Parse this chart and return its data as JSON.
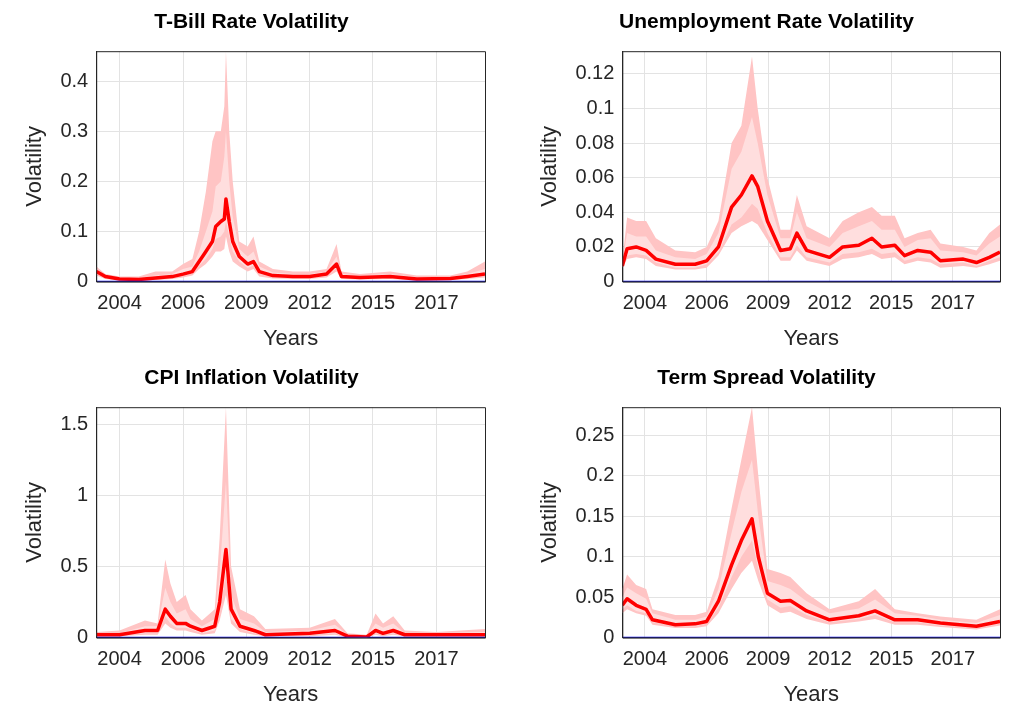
{
  "chart_data": [
    {
      "type": "line",
      "title": "T-Bill Rate Volatility",
      "xlabel": "Years",
      "ylabel": "Volatility",
      "grid": true,
      "xlim": [
        2002.71,
        2019.37
      ],
      "xticks": [
        {
          "value": 2003.71,
          "label": "2004"
        },
        {
          "value": 2006.43,
          "label": "2006"
        },
        {
          "value": 2009.14,
          "label": "2009"
        },
        {
          "value": 2011.86,
          "label": "2012"
        },
        {
          "value": 2014.57,
          "label": "2015"
        },
        {
          "value": 2017.29,
          "label": "2017"
        }
      ],
      "ylim": [
        0,
        0.46
      ],
      "yticks": [
        0,
        0.1,
        0.2,
        0.3,
        0.4
      ],
      "x": [
        2002.72,
        2003.1,
        2003.71,
        2004.53,
        2005.25,
        2005.97,
        2006.43,
        2006.83,
        2007.12,
        2007.41,
        2007.69,
        2007.83,
        2008.05,
        2008.2,
        2008.27,
        2008.41,
        2008.56,
        2008.84,
        2009.2,
        2009.45,
        2009.7,
        2010.28,
        2011.14,
        2011.86,
        2012.58,
        2013.01,
        2013.22,
        2014.01,
        2015.3,
        2016.45,
        2017.89,
        2018.61,
        2019.37
      ],
      "series": [
        {
          "color": "#ff0000",
          "values": [
            0.02,
            0.01,
            0.005,
            0.004,
            0.007,
            0.01,
            0.015,
            0.02,
            0.04,
            0.06,
            0.08,
            0.11,
            0.12,
            0.125,
            0.165,
            0.12,
            0.08,
            0.05,
            0.035,
            0.04,
            0.02,
            0.012,
            0.01,
            0.01,
            0.015,
            0.035,
            0.01,
            0.008,
            0.01,
            0.005,
            0.006,
            0.01,
            0.015
          ],
          "lower": [
            0.015,
            0.007,
            0.003,
            0.002,
            0.005,
            0.007,
            0.011,
            0.016,
            0.032,
            0.045,
            0.065,
            0.085,
            0.09,
            0.1,
            0.12,
            0.09,
            0.06,
            0.04,
            0.027,
            0.032,
            0.015,
            0.009,
            0.007,
            0.007,
            0.011,
            0.027,
            0.007,
            0.006,
            0.007,
            0.003,
            0.004,
            0.007,
            0.011
          ],
          "upper": [
            0.025,
            0.012,
            0.008,
            0.007,
            0.012,
            0.015,
            0.025,
            0.03,
            0.06,
            0.1,
            0.14,
            0.19,
            0.2,
            0.25,
            0.3,
            0.2,
            0.13,
            0.065,
            0.05,
            0.06,
            0.03,
            0.018,
            0.015,
            0.015,
            0.02,
            0.05,
            0.015,
            0.012,
            0.015,
            0.009,
            0.009,
            0.015,
            0.025
          ]
        },
        {
          "color": "#ffc4c4",
          "values": [
            null,
            null,
            null,
            null,
            null,
            null,
            null,
            null,
            null,
            null,
            null,
            null,
            null,
            null,
            null,
            null,
            null,
            null,
            null,
            null,
            null,
            null,
            null,
            null,
            null,
            null,
            null,
            null,
            null,
            null,
            null,
            null,
            null
          ],
          "lower": [
            0.012,
            0.005,
            0.002,
            0.001,
            0.003,
            0.005,
            0.008,
            0.012,
            0.025,
            0.035,
            0.05,
            0.06,
            0.06,
            0.065,
            0.09,
            0.06,
            0.04,
            0.03,
            0.02,
            0.025,
            0.01,
            0.006,
            0.005,
            0.005,
            0.008,
            0.02,
            0.005,
            0.004,
            0.005,
            0.002,
            0.003,
            0.005,
            0.008
          ],
          "upper": [
            0.03,
            0.015,
            0.01,
            0.01,
            0.02,
            0.02,
            0.035,
            0.045,
            0.1,
            0.18,
            0.28,
            0.3,
            0.3,
            0.35,
            0.46,
            0.3,
            0.2,
            0.08,
            0.07,
            0.09,
            0.04,
            0.025,
            0.02,
            0.02,
            0.025,
            0.075,
            0.02,
            0.015,
            0.02,
            0.012,
            0.012,
            0.02,
            0.04
          ]
        }
      ],
      "ref_lines": [
        {
          "axis": "y",
          "value": 0,
          "color": "#0000ff"
        }
      ]
    },
    {
      "type": "line",
      "title": "Unemployment Rate Volatility",
      "xlabel": "Years",
      "ylabel": "Volatility",
      "grid": true,
      "xlim": [
        2002.71,
        2019.37
      ],
      "xticks": [
        {
          "value": 2003.71,
          "label": "2004"
        },
        {
          "value": 2006.43,
          "label": "2006"
        },
        {
          "value": 2009.14,
          "label": "2009"
        },
        {
          "value": 2011.86,
          "label": "2012"
        },
        {
          "value": 2014.57,
          "label": "2015"
        },
        {
          "value": 2017.29,
          "label": "2017"
        }
      ],
      "ylim": [
        0,
        0.133
      ],
      "yticks": [
        0,
        0.02,
        0.04,
        0.06,
        0.08,
        0.1,
        0.12
      ],
      "x": [
        2002.71,
        2002.92,
        2003.32,
        2003.76,
        2004.19,
        2005.05,
        2005.92,
        2006.43,
        2006.95,
        2007.53,
        2007.96,
        2008.43,
        2008.68,
        2009.11,
        2009.69,
        2010.12,
        2010.41,
        2010.84,
        2011.85,
        2012.43,
        2013.14,
        2013.72,
        2014.15,
        2014.73,
        2015.16,
        2015.74,
        2016.31,
        2016.74,
        2017.75,
        2018.33,
        2018.9,
        2019.37
      ],
      "series": [
        {
          "color": "#ff0000",
          "values": [
            0.009,
            0.019,
            0.02,
            0.018,
            0.013,
            0.01,
            0.01,
            0.012,
            0.02,
            0.043,
            0.05,
            0.061,
            0.055,
            0.035,
            0.018,
            0.019,
            0.028,
            0.018,
            0.014,
            0.02,
            0.021,
            0.025,
            0.02,
            0.021,
            0.015,
            0.018,
            0.017,
            0.012,
            0.013,
            0.011,
            0.014,
            0.017
          ],
          "lower": [
            0.0085,
            0.015,
            0.016,
            0.015,
            0.011,
            0.008,
            0.008,
            0.01,
            0.017,
            0.033,
            0.037,
            0.045,
            0.042,
            0.028,
            0.014,
            0.014,
            0.021,
            0.014,
            0.011,
            0.016,
            0.017,
            0.019,
            0.016,
            0.017,
            0.012,
            0.014,
            0.013,
            0.01,
            0.011,
            0.009,
            0.012,
            0.014
          ],
          "upper": [
            0.011,
            0.028,
            0.026,
            0.026,
            0.018,
            0.014,
            0.013,
            0.016,
            0.028,
            0.065,
            0.075,
            0.095,
            0.08,
            0.05,
            0.025,
            0.025,
            0.04,
            0.025,
            0.02,
            0.028,
            0.032,
            0.035,
            0.03,
            0.03,
            0.02,
            0.024,
            0.025,
            0.018,
            0.017,
            0.015,
            0.022,
            0.026
          ]
        },
        {
          "color": "#ffc4c4",
          "values": [
            null,
            null,
            null,
            null,
            null,
            null,
            null,
            null,
            null,
            null,
            null,
            null,
            null,
            null,
            null,
            null,
            null,
            null,
            null,
            null,
            null,
            null,
            null,
            null,
            null,
            null,
            null,
            null,
            null,
            null,
            null,
            null
          ],
          "lower": [
            0.008,
            0.013,
            0.014,
            0.013,
            0.009,
            0.007,
            0.007,
            0.008,
            0.015,
            0.028,
            0.032,
            0.035,
            0.033,
            0.024,
            0.012,
            0.012,
            0.018,
            0.012,
            0.009,
            0.013,
            0.014,
            0.016,
            0.013,
            0.014,
            0.01,
            0.012,
            0.011,
            0.008,
            0.009,
            0.008,
            0.01,
            0.012
          ],
          "upper": [
            0.012,
            0.037,
            0.035,
            0.035,
            0.025,
            0.018,
            0.017,
            0.02,
            0.035,
            0.08,
            0.09,
            0.13,
            0.1,
            0.06,
            0.03,
            0.03,
            0.05,
            0.032,
            0.025,
            0.035,
            0.04,
            0.043,
            0.038,
            0.038,
            0.025,
            0.028,
            0.03,
            0.022,
            0.02,
            0.018,
            0.028,
            0.033
          ]
        }
      ],
      "ref_lines": [
        {
          "axis": "y",
          "value": 0,
          "color": "#0000ff"
        }
      ]
    },
    {
      "type": "line",
      "title": "CPI Inflation Volatility",
      "xlabel": "Years",
      "ylabel": "Volatility",
      "grid": true,
      "xlim": [
        2002.71,
        2019.37
      ],
      "xticks": [
        {
          "value": 2003.71,
          "label": "2004"
        },
        {
          "value": 2006.43,
          "label": "2006"
        },
        {
          "value": 2009.14,
          "label": "2009"
        },
        {
          "value": 2011.86,
          "label": "2012"
        },
        {
          "value": 2014.57,
          "label": "2015"
        },
        {
          "value": 2017.29,
          "label": "2017"
        }
      ],
      "ylim": [
        0,
        1.62
      ],
      "yticks": [
        0,
        0.5,
        1,
        1.5
      ],
      "x": [
        2002.72,
        2003.71,
        2004.8,
        2005.34,
        2005.67,
        2005.89,
        2006.16,
        2006.54,
        2006.75,
        2007.24,
        2007.79,
        2008.0,
        2008.27,
        2008.49,
        2008.87,
        2009.47,
        2009.96,
        2011.86,
        2012.94,
        2013.48,
        2014.3,
        2014.68,
        2015.0,
        2015.44,
        2015.93,
        2017.28,
        2019.37
      ],
      "series": [
        {
          "color": "#ff0000",
          "values": [
            0.02,
            0.02,
            0.05,
            0.05,
            0.2,
            0.15,
            0.1,
            0.1,
            0.08,
            0.05,
            0.08,
            0.25,
            0.62,
            0.2,
            0.08,
            0.05,
            0.02,
            0.03,
            0.05,
            0.01,
            0.005,
            0.05,
            0.03,
            0.05,
            0.02,
            0.02,
            0.02
          ],
          "lower": [
            0.015,
            0.015,
            0.03,
            0.03,
            0.15,
            0.1,
            0.07,
            0.07,
            0.06,
            0.03,
            0.05,
            0.17,
            0.45,
            0.13,
            0.06,
            0.03,
            0.015,
            0.02,
            0.03,
            0.005,
            0,
            0.03,
            0.02,
            0.03,
            0.015,
            0.015,
            0.015
          ],
          "upper": [
            0.03,
            0.03,
            0.08,
            0.08,
            0.35,
            0.25,
            0.17,
            0.2,
            0.13,
            0.08,
            0.13,
            0.45,
            1.1,
            0.3,
            0.13,
            0.1,
            0.04,
            0.05,
            0.09,
            0.02,
            0.01,
            0.1,
            0.07,
            0.1,
            0.03,
            0.03,
            0.04
          ]
        },
        {
          "color": "#ffc4c4",
          "values": [
            null,
            null,
            null,
            null,
            null,
            null,
            null,
            null,
            null,
            null,
            null,
            null,
            null,
            null,
            null,
            null,
            null,
            null,
            null,
            null,
            null,
            null,
            null,
            null,
            null,
            null,
            null
          ],
          "lower": [
            0.01,
            0.01,
            0.02,
            0.02,
            0.1,
            0.07,
            0.05,
            0.05,
            0.04,
            0.02,
            0.03,
            0.12,
            0.3,
            0.1,
            0.04,
            0.02,
            0.01,
            0.01,
            0.02,
            0,
            0,
            0.02,
            0.01,
            0.02,
            0.01,
            0.01,
            0.01
          ],
          "upper": [
            0.04,
            0.05,
            0.12,
            0.1,
            0.55,
            0.38,
            0.25,
            0.3,
            0.2,
            0.12,
            0.2,
            0.7,
            1.62,
            0.5,
            0.2,
            0.15,
            0.06,
            0.07,
            0.13,
            0.03,
            0.02,
            0.17,
            0.1,
            0.15,
            0.05,
            0.04,
            0.06
          ]
        }
      ],
      "ref_lines": [
        {
          "axis": "y",
          "value": 0,
          "color": "#0000ff"
        }
      ]
    },
    {
      "type": "line",
      "title": "Term Spread Volatility",
      "xlabel": "Years",
      "ylabel": "Volatility",
      "grid": true,
      "xlim": [
        2002.71,
        2019.37
      ],
      "xticks": [
        {
          "value": 2003.71,
          "label": "2004"
        },
        {
          "value": 2006.43,
          "label": "2006"
        },
        {
          "value": 2009.14,
          "label": "2009"
        },
        {
          "value": 2011.86,
          "label": "2012"
        },
        {
          "value": 2014.57,
          "label": "2015"
        },
        {
          "value": 2017.29,
          "label": "2017"
        }
      ],
      "ylim": [
        0,
        0.285
      ],
      "yticks": [
        0,
        0.05,
        0.1,
        0.15,
        0.2,
        0.25
      ],
      "x": [
        2002.71,
        2002.92,
        2003.32,
        2003.76,
        2004.04,
        2005.05,
        2005.92,
        2006.43,
        2006.95,
        2007.53,
        2007.96,
        2008.43,
        2008.71,
        2009.11,
        2009.69,
        2010.12,
        2010.84,
        2011.85,
        2013.14,
        2013.86,
        2014.73,
        2015.74,
        2016.74,
        2018.33,
        2019.37
      ],
      "series": [
        {
          "color": "#ff0000",
          "values": [
            0.04,
            0.048,
            0.04,
            0.035,
            0.022,
            0.016,
            0.017,
            0.02,
            0.045,
            0.09,
            0.12,
            0.147,
            0.1,
            0.055,
            0.045,
            0.046,
            0.033,
            0.022,
            0.027,
            0.033,
            0.022,
            0.022,
            0.018,
            0.014,
            0.02
          ],
          "lower": [
            0.035,
            0.04,
            0.033,
            0.03,
            0.019,
            0.014,
            0.014,
            0.017,
            0.037,
            0.075,
            0.1,
            0.12,
            0.085,
            0.047,
            0.037,
            0.039,
            0.028,
            0.019,
            0.023,
            0.028,
            0.019,
            0.019,
            0.015,
            0.012,
            0.017
          ],
          "upper": [
            0.05,
            0.062,
            0.055,
            0.048,
            0.03,
            0.022,
            0.022,
            0.026,
            0.06,
            0.13,
            0.18,
            0.22,
            0.15,
            0.07,
            0.065,
            0.06,
            0.045,
            0.03,
            0.036,
            0.047,
            0.03,
            0.027,
            0.022,
            0.018,
            0.028
          ]
        },
        {
          "color": "#ffc4c4",
          "values": [
            null,
            null,
            null,
            null,
            null,
            null,
            null,
            null,
            null,
            null,
            null,
            null,
            null,
            null,
            null,
            null,
            null,
            null,
            null,
            null,
            null,
            null,
            null,
            null,
            null
          ],
          "lower": [
            0.03,
            0.035,
            0.03,
            0.027,
            0.016,
            0.012,
            0.012,
            0.014,
            0.03,
            0.06,
            0.08,
            0.095,
            0.07,
            0.04,
            0.03,
            0.032,
            0.023,
            0.016,
            0.02,
            0.023,
            0.016,
            0.016,
            0.013,
            0.01,
            0.015
          ],
          "upper": [
            0.06,
            0.078,
            0.065,
            0.06,
            0.035,
            0.028,
            0.028,
            0.032,
            0.075,
            0.16,
            0.22,
            0.285,
            0.2,
            0.085,
            0.08,
            0.075,
            0.055,
            0.035,
            0.045,
            0.06,
            0.035,
            0.03,
            0.026,
            0.022,
            0.035
          ]
        }
      ],
      "ref_lines": [
        {
          "axis": "y",
          "value": 0,
          "color": "#0000ff"
        }
      ]
    }
  ]
}
